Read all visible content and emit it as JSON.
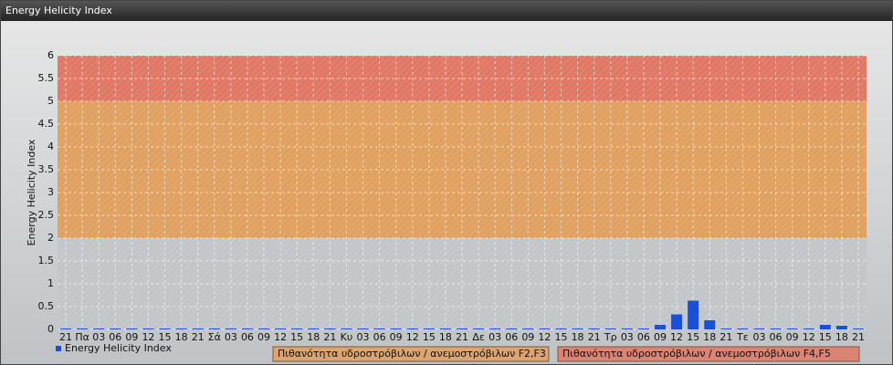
{
  "chart_data": {
    "type": "bar",
    "title": "Energy Helicity Index",
    "y_label": "Energy Helicity Index",
    "categories": [
      "21",
      "Πα",
      "03",
      "06",
      "09",
      "12",
      "15",
      "18",
      "21",
      "Σά",
      "03",
      "06",
      "09",
      "12",
      "15",
      "18",
      "21",
      "Κυ",
      "03",
      "06",
      "09",
      "12",
      "15",
      "18",
      "21",
      "Δε",
      "03",
      "06",
      "09",
      "12",
      "15",
      "18",
      "21",
      "Τρ",
      "03",
      "06",
      "09",
      "12",
      "15",
      "18",
      "21",
      "Τε",
      "03",
      "06",
      "09",
      "12",
      "15",
      "18",
      "21"
    ],
    "series": [
      {
        "name": "Energy Helicity Index",
        "color": "#1a4fd8",
        "values": [
          0.02,
          0.02,
          0.02,
          0.02,
          0.02,
          0.02,
          0.02,
          0.02,
          0.02,
          0.02,
          0.02,
          0.02,
          0.02,
          0.02,
          0.02,
          0.02,
          0.02,
          0.02,
          0.02,
          0.02,
          0.02,
          0.02,
          0.02,
          0.02,
          0.02,
          0.02,
          0.02,
          0.02,
          0.02,
          0.02,
          0.02,
          0.02,
          0.02,
          0.02,
          0.02,
          0.02,
          0.1,
          0.33,
          0.63,
          0.2,
          0.02,
          0.02,
          0.02,
          0.02,
          0.02,
          0.02,
          0.1,
          0.08,
          0.02
        ]
      }
    ],
    "bands": [
      {
        "label": "Πιθανότητα υδροστρόβιλων / ανεμοστρόβιλων F2,F3",
        "from": 2,
        "to": 5,
        "color": "#e0a060"
      },
      {
        "label": "Πιθανότητα υδροστρόβιλων / ανεμοστρόβιλων F4,F5",
        "from": 5,
        "to": 6,
        "color": "#e07865"
      }
    ],
    "ylim": [
      0,
      6
    ],
    "yticks": [
      0,
      0.5,
      1,
      1.5,
      2,
      2.5,
      3,
      3.5,
      4,
      4.5,
      5,
      5.5,
      6
    ],
    "grid": true
  }
}
